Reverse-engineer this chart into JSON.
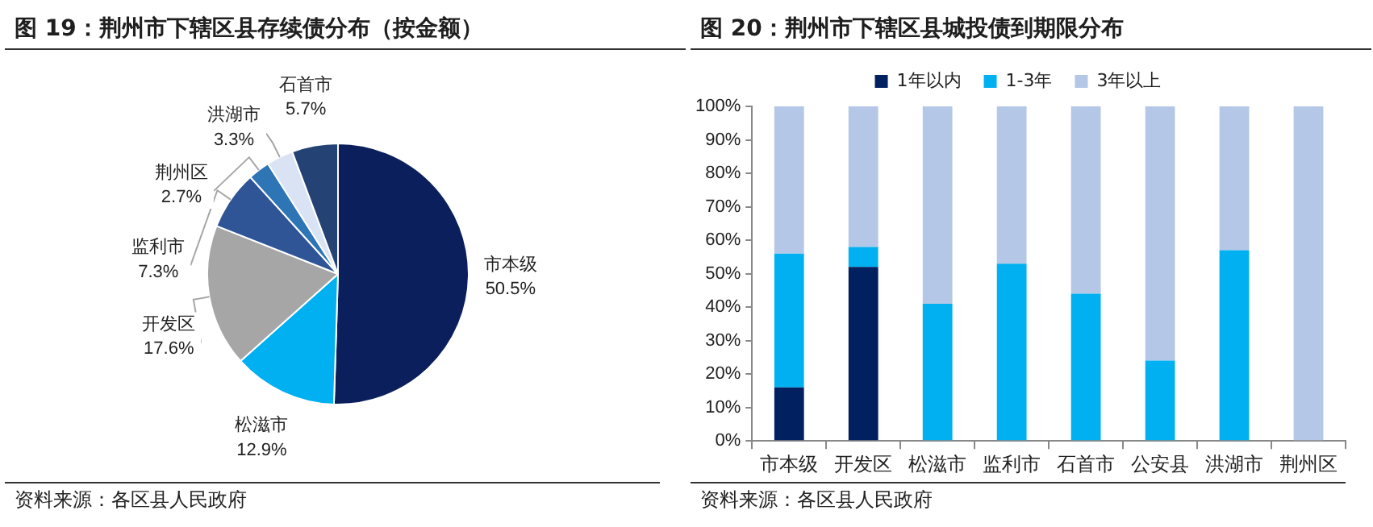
{
  "chart_data": [
    {
      "type": "pie",
      "title": "图 19：荆州市下辖区县存续债分布（按金额）",
      "categories": [
        "市本级",
        "松滋市",
        "开发区",
        "监利市",
        "荆州区",
        "洪湖市",
        "石首市"
      ],
      "values": [
        50.5,
        12.9,
        17.6,
        7.3,
        2.7,
        3.3,
        5.7
      ],
      "colors": [
        "#0b1f5c",
        "#00b0f0",
        "#a6a6a6",
        "#2f5597",
        "#2e75b6",
        "#dae3f3",
        "#254275"
      ],
      "value_labels": [
        "50.5%",
        "12.9%",
        "17.6%",
        "7.3%",
        "2.7%",
        "3.3%",
        "5.7%"
      ],
      "annotations": [
        "资料来源：各区县人民政府"
      ]
    },
    {
      "type": "bar",
      "title": "图 20：荆州市下辖区县城投债到期限分布",
      "stacked": true,
      "categories": [
        "市本级",
        "开发区",
        "松滋市",
        "监利市",
        "石首市",
        "公安县",
        "洪湖市",
        "荆州区"
      ],
      "series": [
        {
          "name": "1年以内",
          "color": "#002060",
          "values": [
            16,
            52,
            0,
            0,
            0,
            0,
            0,
            0
          ]
        },
        {
          "name": "1-3年",
          "color": "#00b0f0",
          "values": [
            40,
            6,
            41,
            53,
            44,
            24,
            57,
            0
          ]
        },
        {
          "name": "3年以上",
          "color": "#b4c7e7",
          "values": [
            44,
            42,
            59,
            47,
            56,
            76,
            43,
            100
          ]
        }
      ],
      "ylim": [
        0,
        100
      ],
      "yticks": [
        {
          "value": 0,
          "label": "0%"
        },
        {
          "value": 10,
          "label": "10%"
        },
        {
          "value": 20,
          "label": "20%"
        },
        {
          "value": 30,
          "label": "30%"
        },
        {
          "value": 40,
          "label": "40%"
        },
        {
          "value": 50,
          "label": "50%"
        },
        {
          "value": 60,
          "label": "60%"
        },
        {
          "value": 70,
          "label": "70%"
        },
        {
          "value": 80,
          "label": "80%"
        },
        {
          "value": 90,
          "label": "90%"
        },
        {
          "value": 100,
          "label": "100%"
        }
      ],
      "grid": false,
      "legend": "top",
      "annotations": [
        "资料来源：各区县人民政府"
      ]
    }
  ]
}
